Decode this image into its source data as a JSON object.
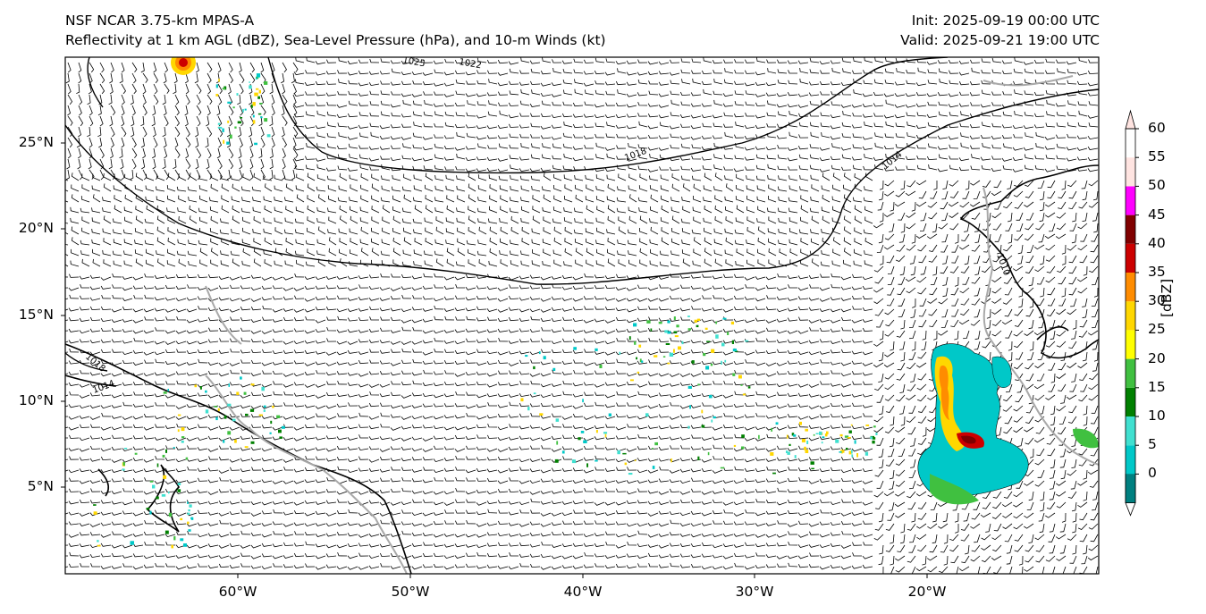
{
  "header": {
    "model": "NSF NCAR 3.75-km MPAS-A",
    "fields": "Reflectivity at 1 km AGL (dBZ), Sea-Level Pressure (hPa), and 10-m Winds (kt)",
    "init": "Init: 2025-09-19 00:00 UTC",
    "valid": "Valid: 2025-09-21 19:00 UTC"
  },
  "axes": {
    "lat_labels": [
      "25°N",
      "20°N",
      "15°N",
      "10°N",
      "5°N"
    ],
    "lon_labels": [
      "60°W",
      "50°W",
      "40°W",
      "30°W",
      "20°W"
    ],
    "lon_range": [
      -70,
      -10
    ],
    "lat_range": [
      0,
      30
    ]
  },
  "isobars": {
    "labels": [
      "1025",
      "1022",
      "1018",
      "1014",
      "1010",
      "1018",
      "1014"
    ]
  },
  "colorbar": {
    "unit": "[dBZ]",
    "ticks": [
      "60",
      "55",
      "50",
      "45",
      "40",
      "35",
      "30",
      "25",
      "20",
      "15",
      "10",
      "5",
      "0"
    ],
    "colors": [
      "#ffffff",
      "#008080",
      "#00c8c8",
      "#40e0d0",
      "#008000",
      "#40c040",
      "#ffff00",
      "#ffd700",
      "#ff8c00",
      "#cc0000",
      "#800000",
      "#ff00ff",
      "#ffe4e1"
    ]
  }
}
